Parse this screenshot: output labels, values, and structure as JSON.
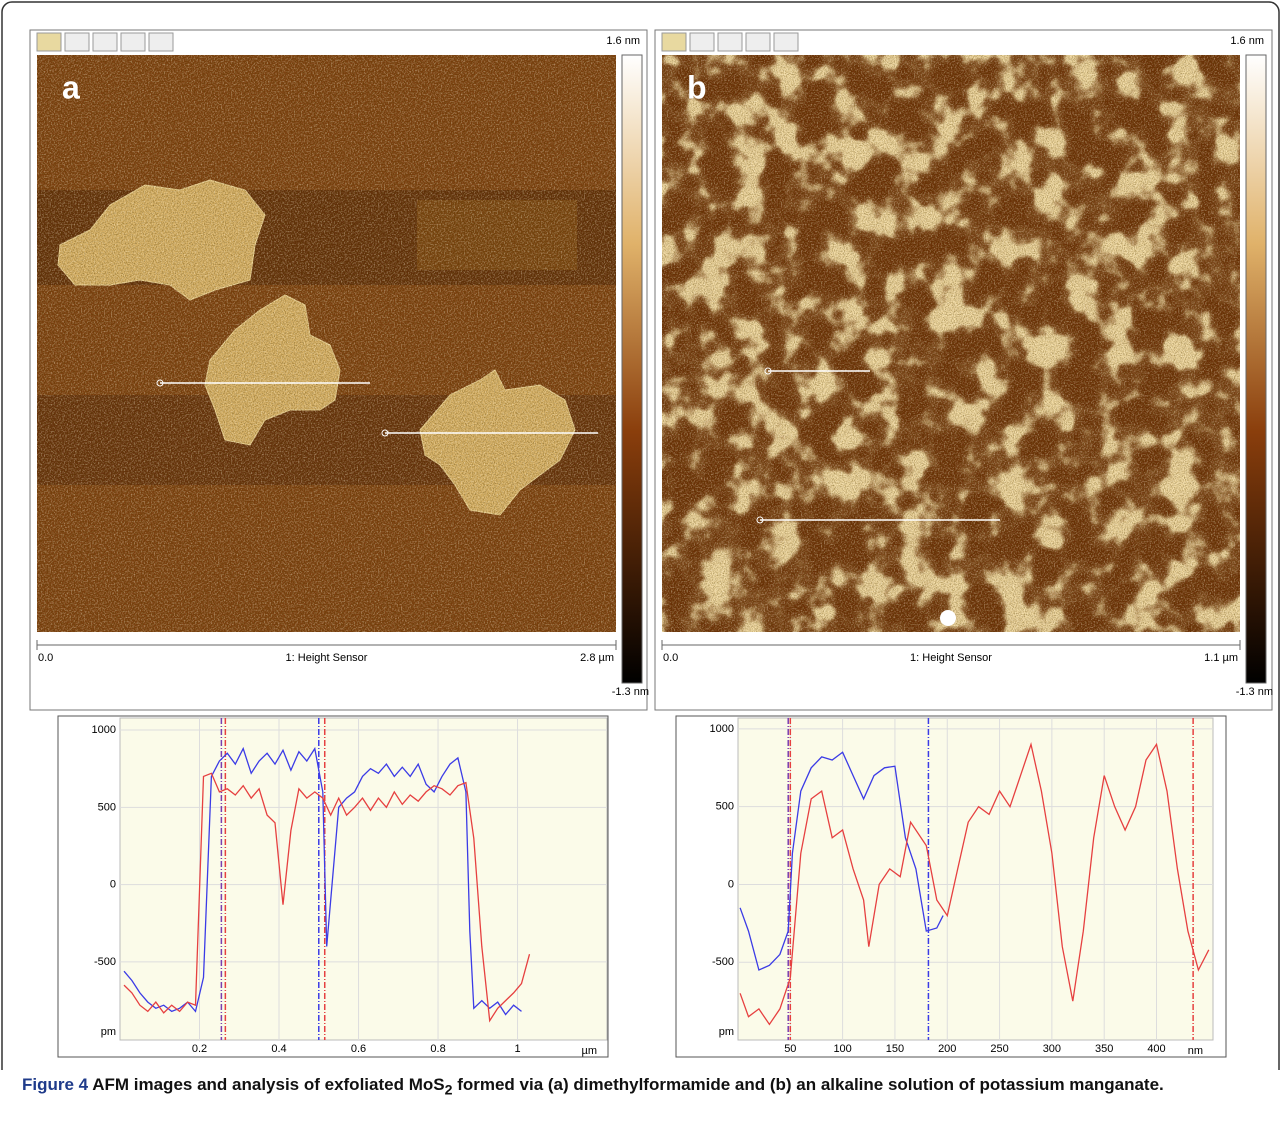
{
  "panels": [
    {
      "label": "a",
      "scale_top": "1.6 nm",
      "scale_bottom": "-1.3 nm",
      "axis_start": "0.0",
      "axis_title": "1: Height Sensor",
      "axis_end": "2.8 µm"
    },
    {
      "label": "b",
      "scale_top": "1.6 nm",
      "scale_bottom": "-1.3 nm",
      "axis_start": "0.0",
      "axis_title": "1: Height Sensor",
      "axis_end": "1.1 µm"
    }
  ],
  "chart_data": [
    {
      "type": "line",
      "xlim": [
        0,
        1.225
      ],
      "xticks": [
        0.2,
        0.4,
        0.6,
        0.8,
        1
      ],
      "ylim": [
        -1005,
        1078
      ],
      "yticks": [
        -500,
        0,
        500,
        1000
      ],
      "x_label": "µm",
      "y_label": "pm",
      "grid": true,
      "series": [
        {
          "color": "#3b3be6",
          "x": [
            0.01,
            0.03,
            0.05,
            0.07,
            0.09,
            0.11,
            0.13,
            0.15,
            0.17,
            0.19,
            0.21,
            0.23,
            0.25,
            0.27,
            0.29,
            0.31,
            0.33,
            0.35,
            0.37,
            0.39,
            0.41,
            0.43,
            0.45,
            0.47,
            0.49,
            0.51,
            0.52,
            0.53,
            0.55,
            0.57,
            0.59,
            0.61,
            0.63,
            0.65,
            0.67,
            0.69,
            0.71,
            0.73,
            0.75,
            0.77,
            0.79,
            0.81,
            0.83,
            0.85,
            0.87,
            0.88,
            0.89,
            0.91,
            0.93,
            0.95,
            0.97,
            0.99,
            1.01
          ],
          "values": [
            -560,
            -620,
            -700,
            -760,
            -800,
            -780,
            -820,
            -800,
            -760,
            -820,
            -600,
            700,
            800,
            850,
            780,
            880,
            720,
            800,
            850,
            780,
            870,
            740,
            860,
            800,
            880,
            600,
            -400,
            -100,
            500,
            560,
            600,
            700,
            750,
            720,
            780,
            700,
            760,
            700,
            780,
            650,
            600,
            700,
            780,
            820,
            600,
            -300,
            -800,
            -750,
            -800,
            -760,
            -840,
            -780,
            -820
          ]
        },
        {
          "color": "#e64040",
          "x": [
            0.01,
            0.03,
            0.05,
            0.07,
            0.09,
            0.11,
            0.13,
            0.15,
            0.17,
            0.19,
            0.21,
            0.23,
            0.25,
            0.27,
            0.29,
            0.31,
            0.33,
            0.35,
            0.37,
            0.39,
            0.41,
            0.43,
            0.45,
            0.47,
            0.49,
            0.51,
            0.53,
            0.55,
            0.57,
            0.59,
            0.61,
            0.63,
            0.65,
            0.67,
            0.69,
            0.71,
            0.73,
            0.75,
            0.77,
            0.79,
            0.81,
            0.83,
            0.85,
            0.87,
            0.89,
            0.91,
            0.93,
            0.95,
            0.97,
            0.99,
            1.01,
            1.03
          ],
          "values": [
            -650,
            -700,
            -780,
            -820,
            -760,
            -830,
            -780,
            -820,
            -760,
            -780,
            700,
            720,
            600,
            620,
            580,
            640,
            560,
            620,
            450,
            400,
            -130,
            350,
            620,
            560,
            600,
            560,
            450,
            560,
            450,
            500,
            560,
            480,
            560,
            500,
            600,
            520,
            580,
            540,
            600,
            640,
            620,
            580,
            640,
            660,
            300,
            -400,
            -880,
            -800,
            -750,
            -700,
            -640,
            -450
          ]
        }
      ],
      "cursors": [
        {
          "x": 0.255,
          "color": "#7a3fb0"
        },
        {
          "x": 0.265,
          "color": "#e64040"
        },
        {
          "x": 0.5,
          "color": "#3b3be6"
        },
        {
          "x": 0.515,
          "color": "#e64040"
        }
      ]
    },
    {
      "type": "line",
      "xlim": [
        0,
        454
      ],
      "xticks": [
        50,
        100,
        150,
        200,
        250,
        300,
        350,
        400
      ],
      "ylim": [
        -1000,
        1070
      ],
      "yticks": [
        -500,
        0,
        500,
        1000
      ],
      "x_label": "nm",
      "y_label": "pm",
      "grid": true,
      "series": [
        {
          "color": "#3b3be6",
          "x": [
            2,
            10,
            20,
            30,
            40,
            48,
            52,
            60,
            70,
            80,
            90,
            100,
            110,
            120,
            130,
            140,
            150,
            160,
            170,
            180,
            190,
            196
          ],
          "values": [
            -150,
            -300,
            -550,
            -520,
            -450,
            -300,
            200,
            600,
            750,
            820,
            800,
            850,
            700,
            550,
            700,
            750,
            760,
            300,
            100,
            -300,
            -280,
            -200
          ]
        },
        {
          "color": "#e64040",
          "x": [
            2,
            10,
            20,
            30,
            40,
            50,
            60,
            70,
            80,
            90,
            100,
            110,
            120,
            125,
            135,
            145,
            155,
            165,
            180,
            190,
            200,
            210,
            220,
            230,
            240,
            250,
            260,
            270,
            280,
            290,
            300,
            310,
            320,
            330,
            340,
            350,
            360,
            370,
            380,
            390,
            400,
            410,
            420,
            430,
            440,
            450
          ],
          "values": [
            -700,
            -850,
            -800,
            -900,
            -800,
            -600,
            200,
            550,
            600,
            300,
            350,
            100,
            -100,
            -400,
            0,
            100,
            50,
            400,
            250,
            -100,
            -200,
            100,
            400,
            500,
            450,
            600,
            500,
            700,
            900,
            600,
            200,
            -400,
            -750,
            -300,
            300,
            700,
            500,
            350,
            500,
            800,
            900,
            600,
            100,
            -300,
            -550,
            -420
          ]
        }
      ],
      "cursors": [
        {
          "x": 48,
          "color": "#7a3fb0"
        },
        {
          "x": 50,
          "color": "#e64040"
        },
        {
          "x": 182,
          "color": "#3b3be6"
        },
        {
          "x": 435,
          "color": "#e64040"
        }
      ]
    }
  ],
  "caption": {
    "label": "Figure 4",
    "text_before": "AFM images and analysis of exfoliated MoS",
    "subscript": "2",
    "text_after": " formed via (a) dimethylformamide and (b) an alkaline solution of potassium manganate."
  }
}
